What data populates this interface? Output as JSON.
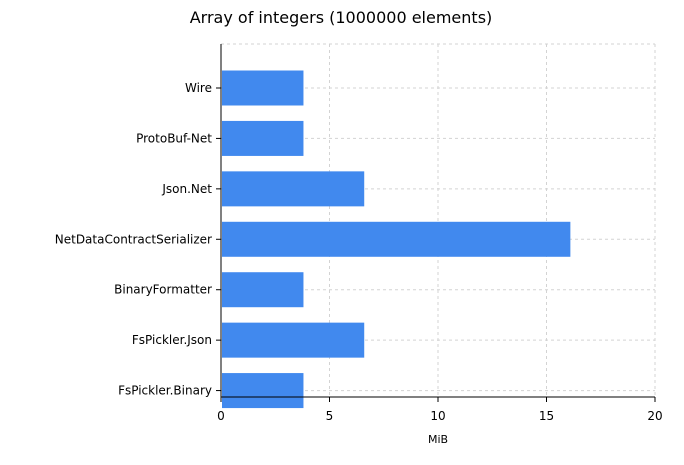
{
  "chart_data": {
    "type": "bar",
    "orientation": "horizontal",
    "title": "Array of integers (1000000 elements)",
    "xlabel": "MiB",
    "ylabel": "",
    "categories": [
      "Wire",
      "ProtoBuf-Net",
      "Json.Net",
      "NetDataContractSerializer",
      "BinaryFormatter",
      "FsPickler.Json",
      "FsPickler.Binary"
    ],
    "values": [
      3.8,
      3.8,
      6.6,
      16.1,
      3.8,
      6.6,
      3.8
    ],
    "xlim": [
      0,
      20
    ],
    "xticks": [
      "0",
      "5",
      "10",
      "15",
      "20"
    ],
    "grid": true,
    "bar_color": "#4189ee",
    "grid_color": "#d3d3d3"
  }
}
